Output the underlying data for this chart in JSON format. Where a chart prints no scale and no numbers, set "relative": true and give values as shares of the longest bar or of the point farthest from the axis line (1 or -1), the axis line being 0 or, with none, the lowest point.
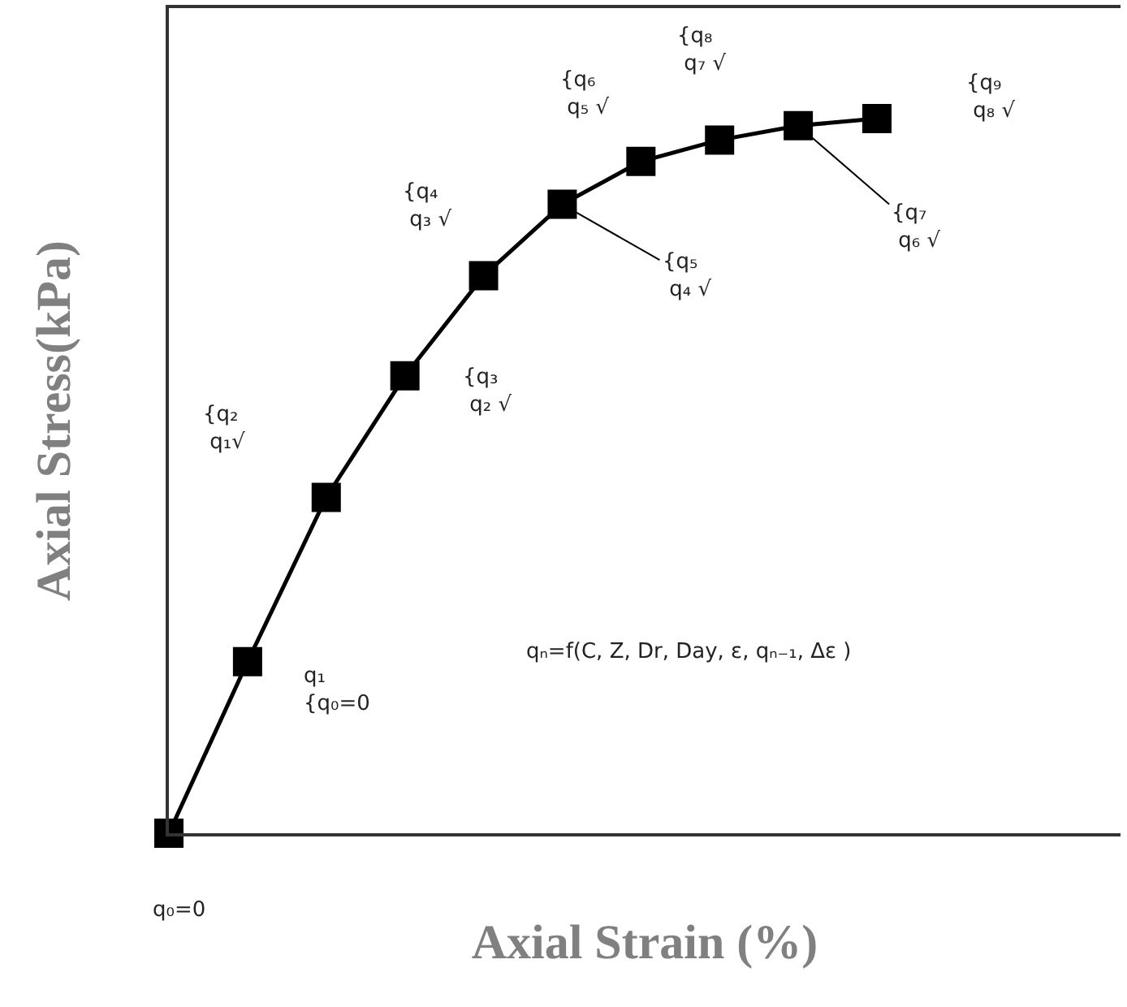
{
  "chart_data": {
    "type": "line",
    "relative": true,
    "xlabel": "Axial Strain (%)",
    "ylabel": "Axial Stress(kPa)",
    "categories": [
      null,
      null,
      null,
      null,
      null,
      null,
      null,
      null,
      null,
      null
    ],
    "series": [
      {
        "color": "#000000",
        "values": [
          0,
          0.24,
          0.47,
          0.64,
          0.78,
          0.88,
          0.94,
          0.97,
          0.99,
          1
        ]
      }
    ],
    "marker": "square",
    "line_style": "solid",
    "grid": false,
    "annotations": [
      "q₀=0",
      "q₁\n{q₀=0",
      "{q₂\n q₁√",
      "{q₃\n q₂ √",
      "{q₄\n q₃ √",
      "{q₅\n q₄ √",
      "{q₆\n q₅ √",
      "{q₈\n q₇ √",
      "{q₇\n q₆ √",
      "{q₉\n q₈ √",
      "qₙ=f(C, Z, Dr, Day, ε, qₙ₋₁, Δε )"
    ]
  }
}
